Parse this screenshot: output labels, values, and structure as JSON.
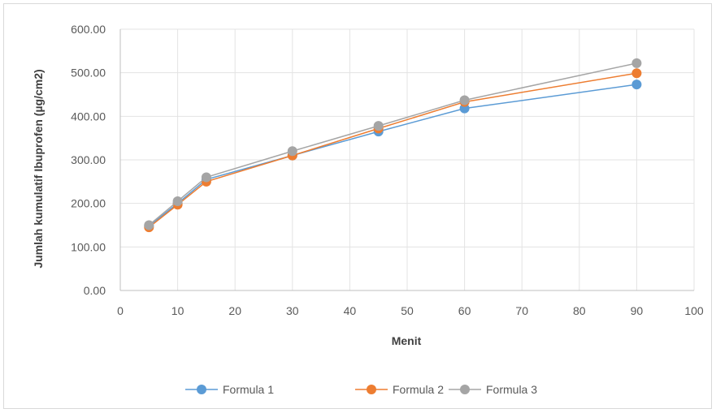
{
  "chart_data": {
    "type": "line",
    "title": "",
    "xlabel": "Menit",
    "ylabel": "Jumlah kumulatif Ibuprofen (µg/cm2)",
    "xlim": [
      0,
      100
    ],
    "ylim": [
      0,
      600
    ],
    "x_ticks": [
      "0",
      "10",
      "20",
      "30",
      "40",
      "50",
      "60",
      "70",
      "80",
      "90",
      "100"
    ],
    "y_ticks": [
      "0.00",
      "100.00",
      "200.00",
      "300.00",
      "400.00",
      "500.00",
      "600.00"
    ],
    "grid": true,
    "legend_position": "bottom",
    "x": [
      5,
      10,
      15,
      30,
      45,
      60,
      90
    ],
    "series": [
      {
        "name": "Formula 1",
        "color": "#5B9BD5",
        "values": [
          148,
          200,
          255,
          310,
          365,
          418,
          473
        ]
      },
      {
        "name": "Formula 2",
        "color": "#ED7D31",
        "values": [
          145,
          197,
          250,
          310,
          372,
          433,
          499
        ]
      },
      {
        "name": "Formula 3",
        "color": "#A5A5A5",
        "values": [
          150,
          205,
          260,
          320,
          378,
          437,
          522
        ]
      }
    ]
  }
}
